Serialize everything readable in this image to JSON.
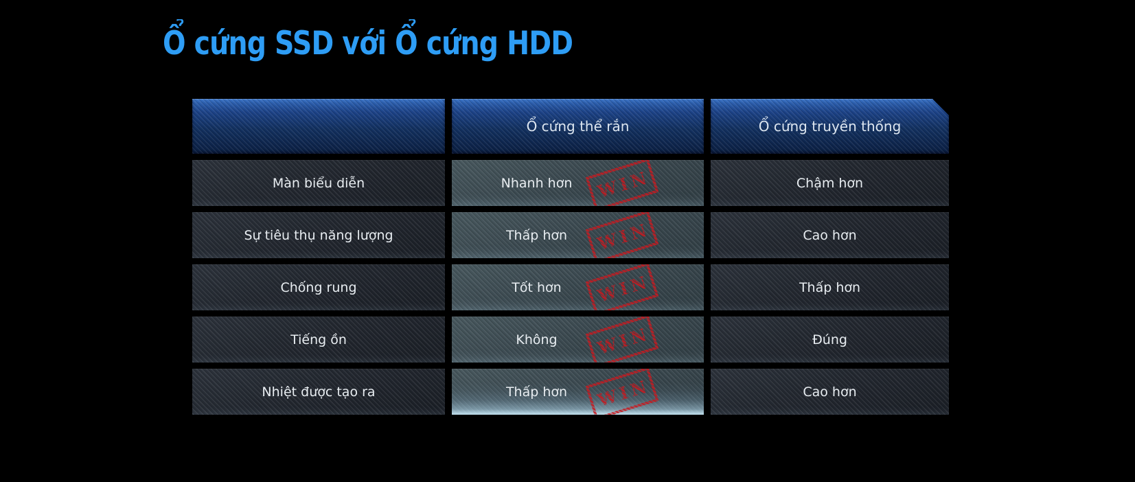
{
  "title": {
    "text": "Ổ cứng SSD với Ổ cứng HDD",
    "color": "#2e9df5"
  },
  "table": {
    "headers": [
      {
        "label": ""
      },
      {
        "label": "Ổ cứng thể rắn"
      },
      {
        "label": "Ổ cứng truyền thống"
      }
    ],
    "rows": [
      {
        "criterion": "Màn biểu diễn",
        "ssd": "Nhanh hơn",
        "ssd_win": true,
        "hdd": "Chậm hơn"
      },
      {
        "criterion": "Sự tiêu thụ năng lượng",
        "ssd": "Thấp hơn",
        "ssd_win": true,
        "hdd": "Cao hơn"
      },
      {
        "criterion": "Chống rung",
        "ssd": "Tốt hơn",
        "ssd_win": true,
        "hdd": "Thấp hơn"
      },
      {
        "criterion": "Tiếng ồn",
        "ssd": "Không",
        "ssd_win": true,
        "hdd": "Đúng"
      },
      {
        "criterion": "Nhiệt được tạo ra",
        "ssd": "Thấp hơn",
        "ssd_win": true,
        "hdd": "Cao hơn"
      }
    ],
    "win_stamp_text": "WIN"
  },
  "colors": {
    "background": "#000000",
    "title_blue": "#2e9df5",
    "header_blue_top": "#3d78cd",
    "header_blue_bottom": "#0b1f42",
    "criterion_cell": "#22262e",
    "ssd_cell": "#3b4950",
    "ssd_bottom_glow": "#c8e8f6",
    "stamp_red": "#c8191f",
    "cell_text": "#e8edf1"
  },
  "chart_data": {
    "type": "table",
    "title": "Ổ cứng SSD với Ổ cứng HDD",
    "columns": [
      "",
      "Ổ cứng thể rắn",
      "Ổ cứng truyền thống"
    ],
    "rows": [
      [
        "Màn biểu diễn",
        "Nhanh hơn (WIN)",
        "Chậm hơn"
      ],
      [
        "Sự tiêu thụ năng lượng",
        "Thấp hơn (WIN)",
        "Cao hơn"
      ],
      [
        "Chống rung",
        "Tốt hơn (WIN)",
        "Thấp hơn"
      ],
      [
        "Tiếng ồn",
        "Không (WIN)",
        "Đúng"
      ],
      [
        "Nhiệt được tạo ra",
        "Thấp hơn (WIN)",
        "Cao hơn"
      ]
    ],
    "notes": "Comparison infographic table; every SSD cell carries a red rotated WIN stamp; last SSD cell has a light-blue glow at its bottom edge."
  }
}
